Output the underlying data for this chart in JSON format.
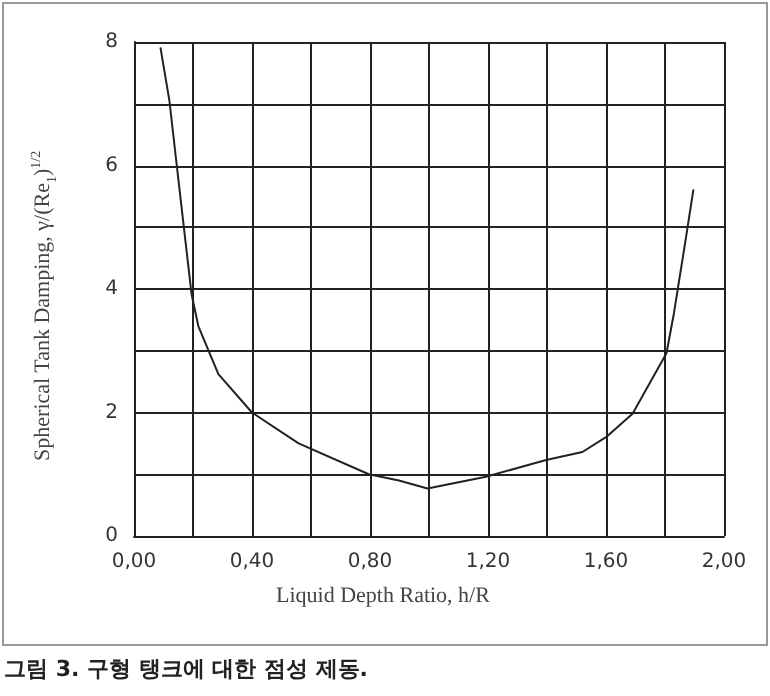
{
  "chart_data": {
    "type": "line",
    "xlabel": "Liquid Depth Ratio, h/R",
    "ylabel": "Spherical Tank Damping, γ/(Re$_{1}$)$^{1/2}$",
    "annotations": [
      "그림 3. 구형 탱크에 대한 점성 제동."
    ],
    "x": [
      0.09,
      0.12,
      0.145,
      0.195,
      0.218,
      0.286,
      0.4,
      0.558,
      0.796,
      0.898,
      0.995,
      1.193,
      1.397,
      1.52,
      1.6,
      1.69,
      1.805,
      1.83,
      1.87,
      1.896
    ],
    "series": [
      {
        "color": "#222222",
        "values": [
          7.9,
          7.05,
          6.0,
          3.92,
          3.4,
          2.62,
          2.0,
          1.5,
          1.0,
          0.9,
          0.77,
          0.96,
          1.23,
          1.36,
          1.6,
          1.98,
          2.96,
          3.6,
          4.8,
          5.6
        ]
      }
    ],
    "xlim": [
      0,
      2
    ],
    "ylim": [
      0,
      8
    ],
    "xticks": [
      {
        "value": 0,
        "label": "0,00"
      },
      {
        "value": 0.2,
        "label": null
      },
      {
        "value": 0.4,
        "label": "0,40"
      },
      {
        "value": 0.6,
        "label": null
      },
      {
        "value": 0.8,
        "label": "0,80"
      },
      {
        "value": 1.0,
        "label": null
      },
      {
        "value": 1.2,
        "label": "1,20"
      },
      {
        "value": 1.4,
        "label": null
      },
      {
        "value": 1.6,
        "label": "1,60"
      },
      {
        "value": 1.8,
        "label": null
      },
      {
        "value": 2.0,
        "label": "2,00"
      }
    ],
    "yticks": [
      0,
      {
        "value": 1,
        "label": null
      },
      2,
      {
        "value": 3,
        "label": null
      },
      4,
      {
        "value": 5,
        "label": null
      },
      6,
      {
        "value": 7,
        "label": null
      },
      8
    ],
    "grid": true,
    "marker": "none",
    "line_style": "solid"
  }
}
